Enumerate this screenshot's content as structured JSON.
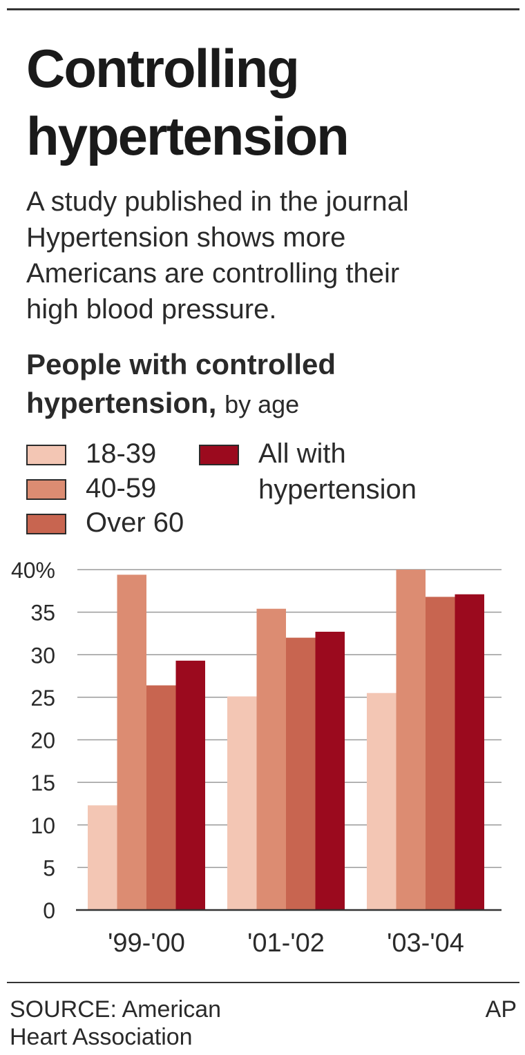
{
  "title": {
    "line1": "Controlling",
    "line2": "hypertension"
  },
  "intro": {
    "line1": "A study published in the journal",
    "line2": "Hypertension shows more",
    "line3": "Americans are controlling their",
    "line4": "high blood pressure."
  },
  "subtitle": {
    "line1": "People with controlled",
    "line2_bold": "hypertension,",
    "line2_light": "by age"
  },
  "legend": {
    "items": [
      {
        "label_line1": "18-39",
        "label_line2": ""
      },
      {
        "label_line1": "40-59",
        "label_line2": ""
      },
      {
        "label_line1": "Over 60",
        "label_line2": ""
      },
      {
        "label_line1": "All with",
        "label_line2": "hypertension"
      }
    ]
  },
  "footer": {
    "source_line1": "SOURCE: American",
    "source_line2": "Heart Association",
    "credit": "AP"
  },
  "colors": {
    "series_18_39": "#f3c6b4",
    "series_40_59": "#dc8c72",
    "series_over_60": "#c86550",
    "series_all": "#9b0a1e",
    "gridline": "#9a9a9a",
    "baseline": "#333333"
  },
  "chart_data": {
    "type": "bar",
    "title": "People with controlled hypertension, by age",
    "categories": [
      "'99-'00",
      "'01-'02",
      "'03-'04"
    ],
    "series": [
      {
        "name": "18-39",
        "values": [
          12.3,
          25.1,
          25.5
        ]
      },
      {
        "name": "40-59",
        "values": [
          39.4,
          35.4,
          40.0
        ]
      },
      {
        "name": "Over 60",
        "values": [
          26.4,
          32.0,
          36.8
        ]
      },
      {
        "name": "All with hypertension",
        "values": [
          29.3,
          32.7,
          37.1
        ]
      }
    ],
    "ylim": [
      0,
      40
    ],
    "yticks": [
      0,
      5,
      10,
      15,
      20,
      25,
      30,
      35,
      40
    ],
    "ytick_labels": [
      "0",
      "5",
      "10",
      "15",
      "20",
      "25",
      "30",
      "35",
      "40%"
    ],
    "grid": true,
    "legend": "top-left"
  }
}
